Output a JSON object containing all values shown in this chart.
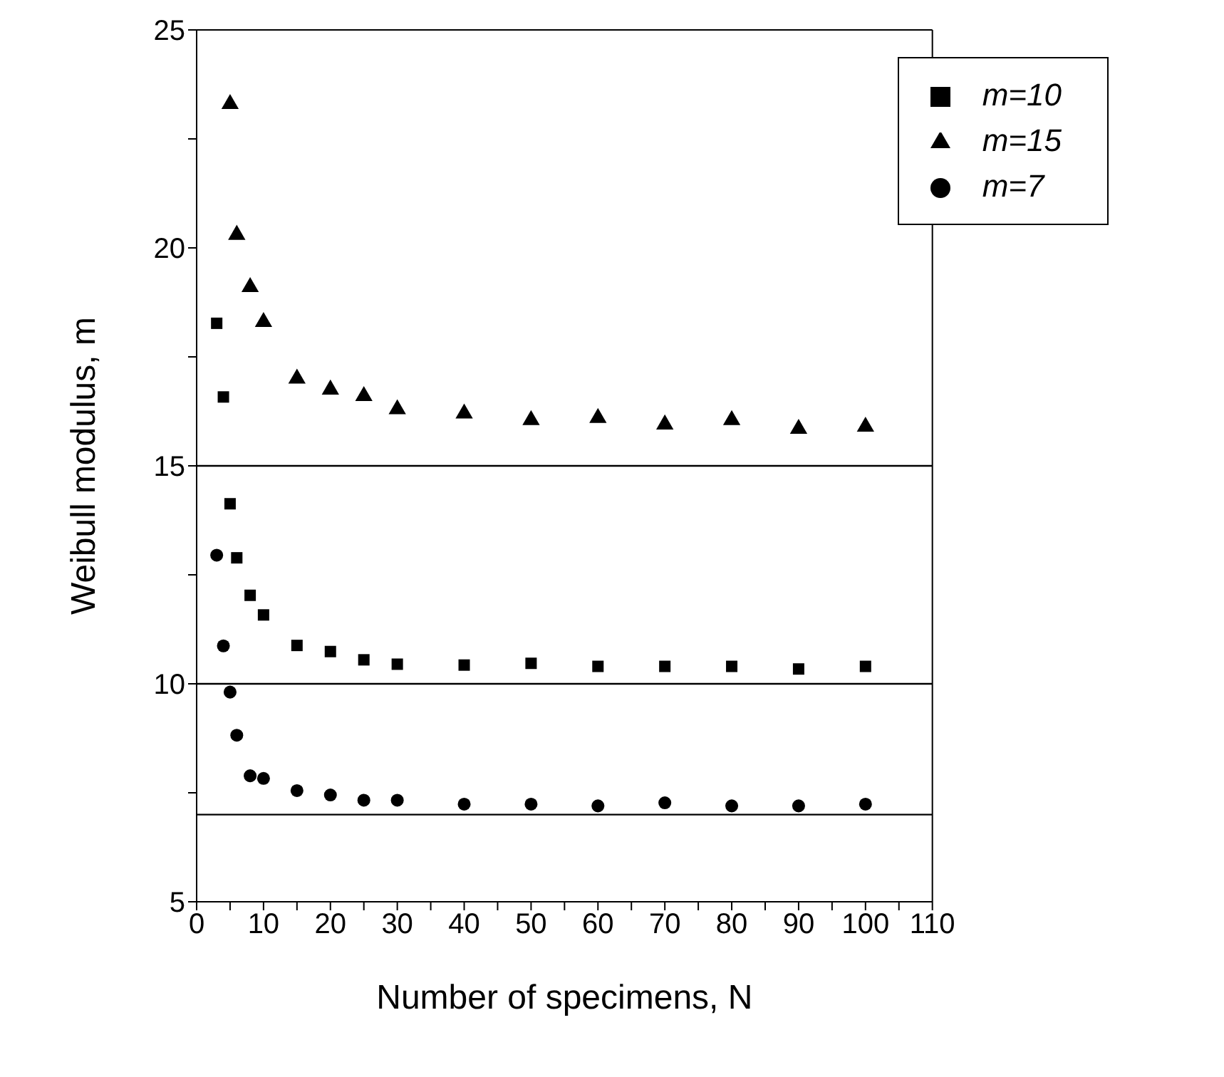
{
  "chart_data": {
    "type": "scatter",
    "xlabel": "Number of specimens, N",
    "ylabel": "Weibull modulus, m",
    "xlim": [
      0,
      110
    ],
    "ylim": [
      5,
      25
    ],
    "xticks": [
      0,
      {
        "value": 5,
        "label": null
      },
      10,
      {
        "value": 15,
        "label": null
      },
      20,
      {
        "value": 25,
        "label": null
      },
      30,
      {
        "value": 35,
        "label": null
      },
      40,
      {
        "value": 45,
        "label": null
      },
      50,
      {
        "value": 55,
        "label": null
      },
      60,
      {
        "value": 65,
        "label": null
      },
      70,
      {
        "value": 75,
        "label": null
      },
      80,
      {
        "value": 85,
        "label": null
      },
      90,
      {
        "value": 95,
        "label": null
      },
      100,
      {
        "value": 105,
        "label": null
      },
      110
    ],
    "yticks": [
      5,
      {
        "value": 7.5,
        "label": null
      },
      10,
      {
        "value": 12.5,
        "label": null
      },
      15,
      {
        "value": 17.5,
        "label": null
      },
      20,
      {
        "value": 22.5,
        "label": null
      },
      25
    ],
    "series": [
      {
        "name": "m=7",
        "color": "#000000",
        "marker": "circle",
        "x": [
          3,
          4,
          5,
          6,
          8,
          10,
          15,
          20,
          25,
          30,
          40,
          50,
          60,
          70,
          80,
          90,
          100
        ],
        "values": [
          12.95,
          10.87,
          9.81,
          8.82,
          7.89,
          7.83,
          7.55,
          7.45,
          7.33,
          7.33,
          7.24,
          7.24,
          7.2,
          7.27,
          7.2,
          7.2,
          7.24
        ]
      },
      {
        "name": "m=10",
        "color": "#000000",
        "marker": "square",
        "x": [
          3,
          4,
          5,
          6,
          8,
          10,
          15,
          20,
          25,
          30,
          40,
          50,
          60,
          70,
          80,
          90,
          100
        ],
        "values": [
          18.27,
          16.58,
          14.13,
          12.89,
          12.03,
          11.58,
          10.88,
          10.74,
          10.55,
          10.45,
          10.43,
          10.47,
          10.4,
          10.4,
          10.4,
          10.34,
          10.4
        ]
      },
      {
        "name": "m=15",
        "color": "#000000",
        "marker": "triangle",
        "x": [
          5,
          6,
          8,
          10,
          15,
          20,
          25,
          30,
          40,
          50,
          60,
          70,
          80,
          90,
          100
        ],
        "values": [
          23.3,
          20.3,
          19.1,
          18.3,
          17.0,
          16.75,
          16.6,
          16.3,
          16.2,
          16.05,
          16.1,
          15.95,
          16.05,
          15.85,
          15.9
        ]
      }
    ],
    "ref_lines": [
      {
        "axis": "y",
        "value": 7,
        "color": "#000000"
      },
      {
        "axis": "y",
        "value": 10,
        "color": "#000000"
      },
      {
        "axis": "y",
        "value": 15,
        "color": "#000000"
      }
    ],
    "grid": false,
    "legend": "top right"
  }
}
